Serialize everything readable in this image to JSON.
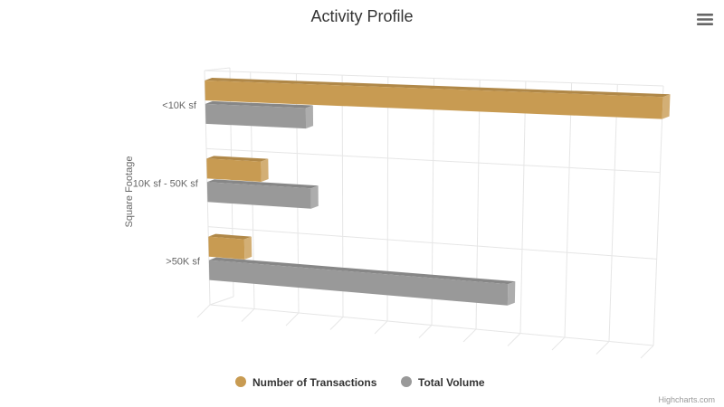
{
  "menu": {
    "icon": "hamburger-menu-icon"
  },
  "credits": "Highcharts.com",
  "chart_data": {
    "type": "bar",
    "title": "Activity Profile",
    "ylabel": "Square Footage",
    "categories": [
      "<10K sf",
      "10K sf - 50K sf",
      ">50K sf"
    ],
    "series": [
      {
        "name": "Number of Transactions",
        "color": "#c89b52",
        "values": [
          100,
          12,
          8
        ]
      },
      {
        "name": "Total Volume",
        "color": "#999999",
        "values": [
          22,
          23,
          67
        ]
      }
    ],
    "xlim": [
      0,
      100
    ],
    "grid": true,
    "legend": "bottom-center",
    "style": "3d"
  }
}
